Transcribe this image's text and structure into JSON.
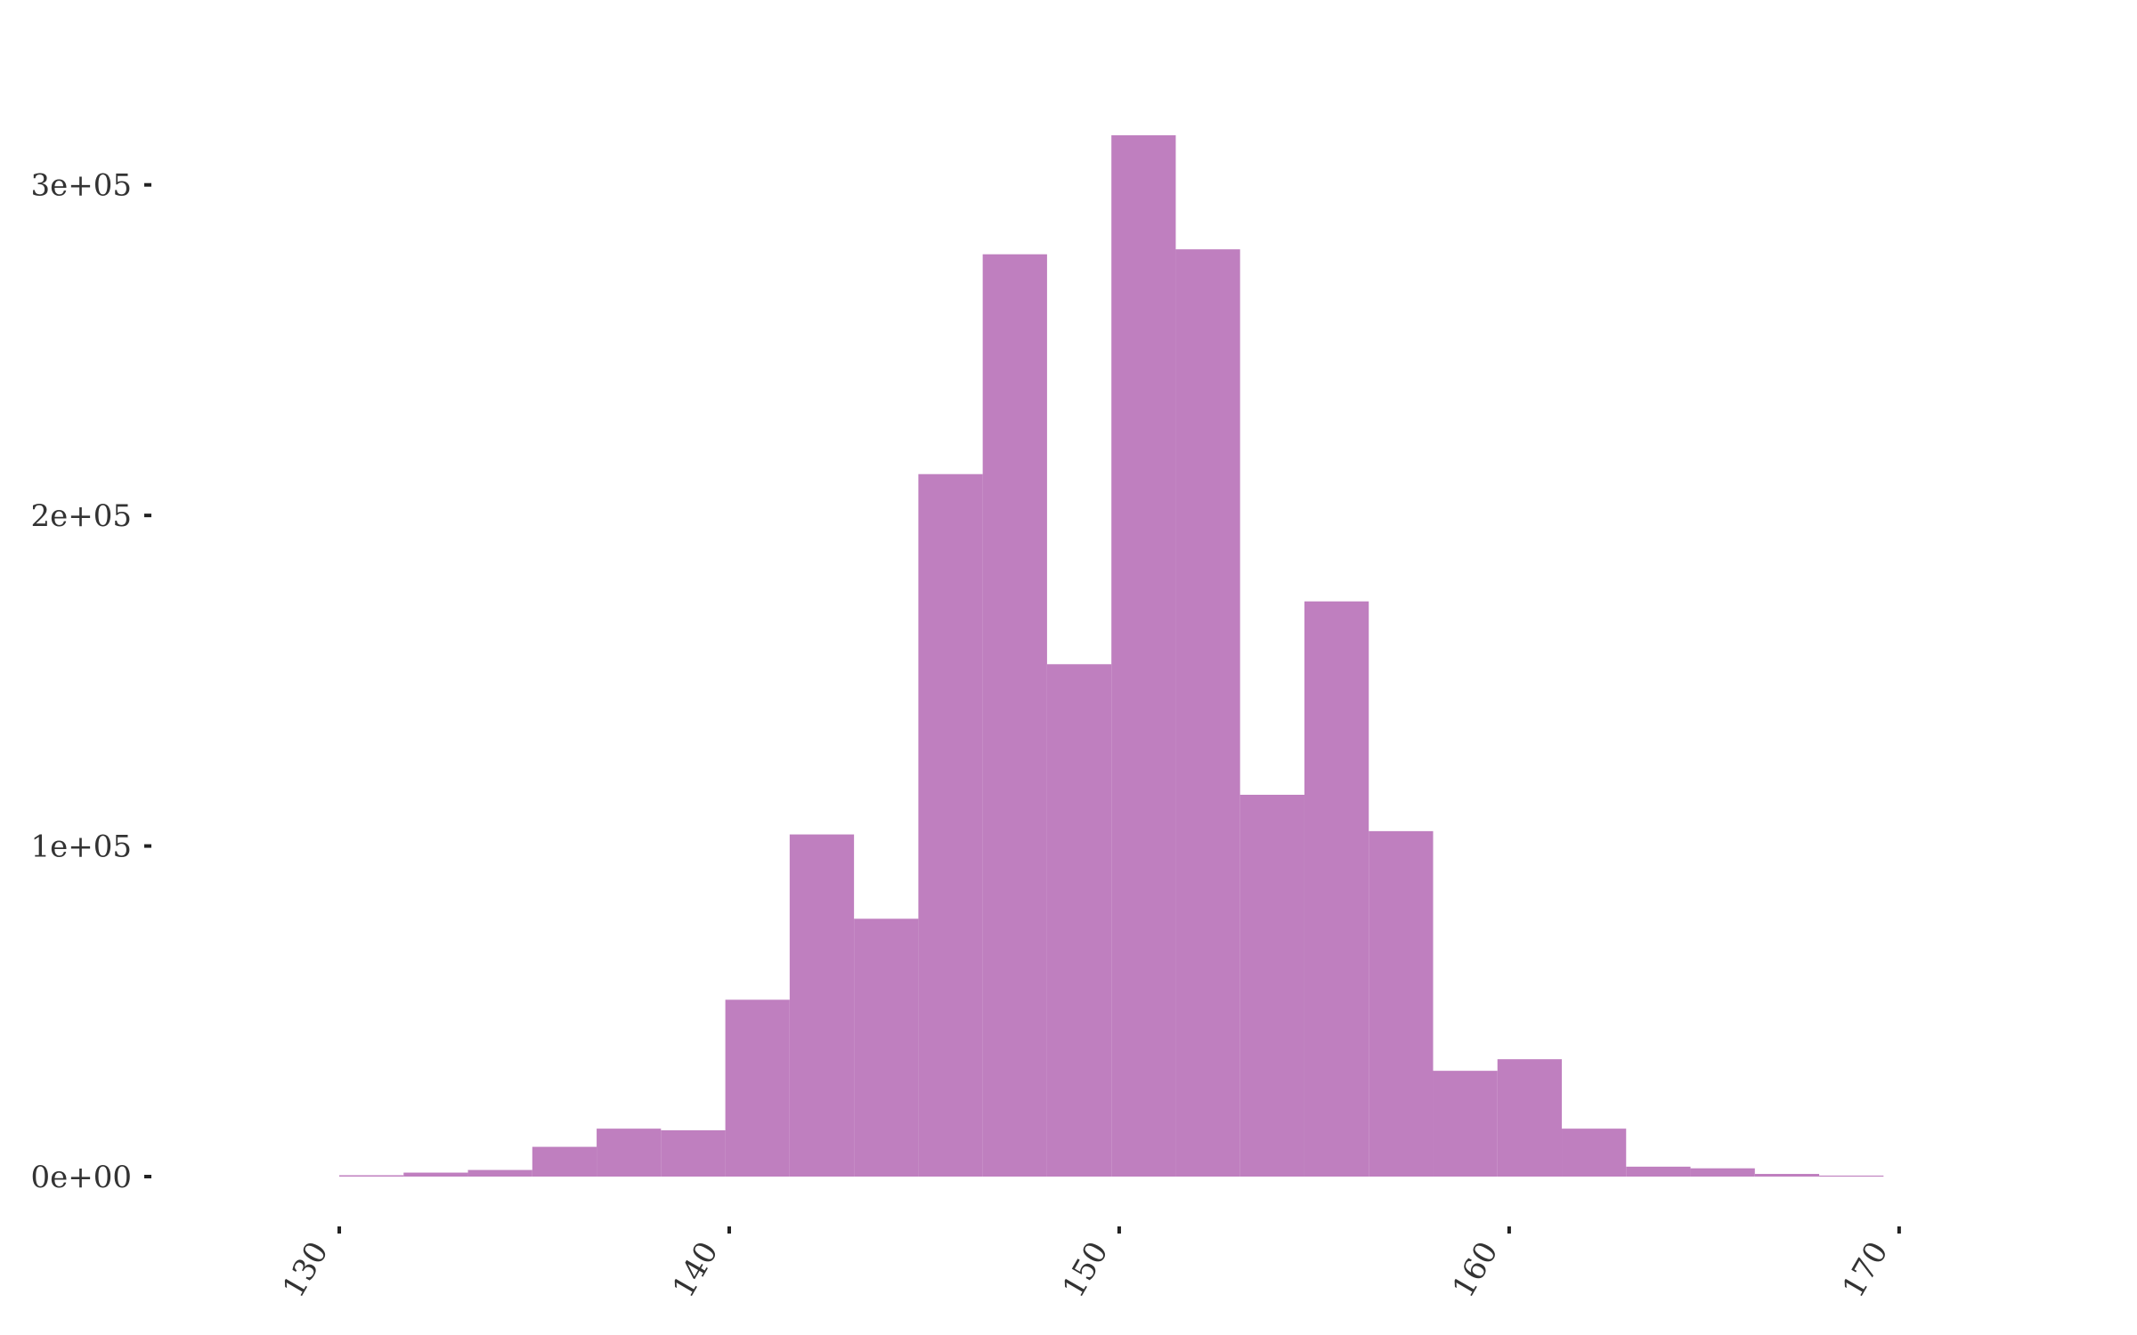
{
  "chart_data": {
    "type": "bar",
    "subtype": "histogram",
    "bar_color": "#bf7fbf",
    "bin_width": 1.65,
    "bin_start": 130,
    "bins": [
      {
        "x0": 130.0,
        "x1": 131.65,
        "count": 400
      },
      {
        "x0": 131.65,
        "x1": 133.3,
        "count": 1200
      },
      {
        "x0": 133.3,
        "x1": 134.95,
        "count": 2000
      },
      {
        "x0": 134.95,
        "x1": 136.6,
        "count": 9000
      },
      {
        "x0": 136.6,
        "x1": 138.25,
        "count": 14500
      },
      {
        "x0": 138.25,
        "x1": 139.9,
        "count": 14000
      },
      {
        "x0": 139.9,
        "x1": 141.55,
        "count": 53500
      },
      {
        "x0": 141.55,
        "x1": 143.2,
        "count": 103500
      },
      {
        "x0": 143.2,
        "x1": 144.85,
        "count": 78000
      },
      {
        "x0": 144.85,
        "x1": 146.5,
        "count": 212500
      },
      {
        "x0": 146.5,
        "x1": 148.15,
        "count": 279000
      },
      {
        "x0": 148.15,
        "x1": 149.8,
        "count": 155000
      },
      {
        "x0": 149.8,
        "x1": 151.45,
        "count": 315000
      },
      {
        "x0": 151.45,
        "x1": 153.1,
        "count": 280500
      },
      {
        "x0": 153.1,
        "x1": 154.75,
        "count": 115500
      },
      {
        "x0": 154.75,
        "x1": 156.4,
        "count": 174000
      },
      {
        "x0": 156.4,
        "x1": 158.05,
        "count": 104500
      },
      {
        "x0": 158.05,
        "x1": 159.7,
        "count": 32000
      },
      {
        "x0": 159.7,
        "x1": 161.35,
        "count": 35500
      },
      {
        "x0": 161.35,
        "x1": 163.0,
        "count": 14500
      },
      {
        "x0": 163.0,
        "x1": 164.65,
        "count": 3000
      },
      {
        "x0": 164.65,
        "x1": 166.3,
        "count": 2500
      },
      {
        "x0": 166.3,
        "x1": 167.95,
        "count": 800
      },
      {
        "x0": 167.95,
        "x1": 169.6,
        "count": 300
      }
    ],
    "x_ticks": [
      130,
      140,
      150,
      160,
      170
    ],
    "x_tick_labels": [
      "130",
      "140",
      "150",
      "160",
      "170"
    ],
    "y_ticks": [
      0,
      100000,
      200000,
      300000
    ],
    "y_tick_labels": [
      "0e+00",
      "1e+05",
      "2e+05",
      "3e+05"
    ],
    "xlim": [
      121.3,
      176.1
    ],
    "ylim": [
      0,
      315000
    ],
    "title": "",
    "xlabel": "",
    "ylabel": "",
    "grid": false,
    "legend": false
  }
}
